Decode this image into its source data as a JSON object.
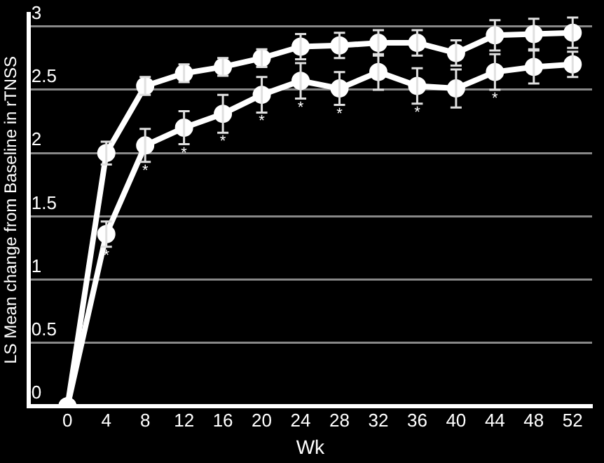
{
  "chart_data": {
    "type": "line",
    "xlabel": "Wk",
    "ylabel": "LS Mean change from Baseline in rTNSS",
    "x": [
      0,
      4,
      8,
      12,
      16,
      20,
      24,
      28,
      32,
      36,
      40,
      44,
      48,
      52
    ],
    "series": [
      {
        "color": "#ffffff",
        "values": [
          0,
          2.0,
          2.53,
          2.63,
          2.68,
          2.75,
          2.84,
          2.85,
          2.87,
          2.87,
          2.79,
          2.93,
          2.94,
          2.95
        ],
        "errors": [
          null,
          0.09,
          0.07,
          0.07,
          0.07,
          0.07,
          0.1,
          0.1,
          0.1,
          0.1,
          0.1,
          0.12,
          0.12,
          0.12
        ]
      },
      {
        "color": "#ffffff",
        "values": [
          0,
          1.36,
          2.06,
          2.2,
          2.31,
          2.46,
          2.57,
          2.51,
          2.64,
          2.53,
          2.51,
          2.64,
          2.68,
          2.7
        ],
        "errors": [
          null,
          0.1,
          0.13,
          0.13,
          0.15,
          0.14,
          0.14,
          0.13,
          0.14,
          0.14,
          0.15,
          0.14,
          0.13,
          0.1
        ]
      }
    ],
    "xlim": [
      -4,
      54
    ],
    "xticks": [
      0,
      4,
      8,
      12,
      16,
      20,
      24,
      28,
      32,
      36,
      40,
      44,
      48,
      52
    ],
    "ylim": [
      0,
      3.1
    ],
    "yticks": [
      0,
      0.5,
      1,
      1.5,
      2,
      2.5,
      3
    ],
    "grid": "y",
    "marker": "circle",
    "line_style": "solid",
    "annotations": [
      {
        "text": "*",
        "x": 4,
        "y": 1.26
      },
      {
        "text": "*",
        "x": 8,
        "y": 1.93
      },
      {
        "text": "*",
        "x": 12,
        "y": 2.07
      },
      {
        "text": "*",
        "x": 16,
        "y": 2.16
      },
      {
        "text": "*",
        "x": 20,
        "y": 2.32
      },
      {
        "text": "*",
        "x": 24,
        "y": 2.43
      },
      {
        "text": "*",
        "x": 28,
        "y": 2.38
      },
      {
        "text": "*",
        "x": 36,
        "y": 2.39
      },
      {
        "text": "*",
        "x": 44,
        "y": 2.5
      }
    ]
  }
}
